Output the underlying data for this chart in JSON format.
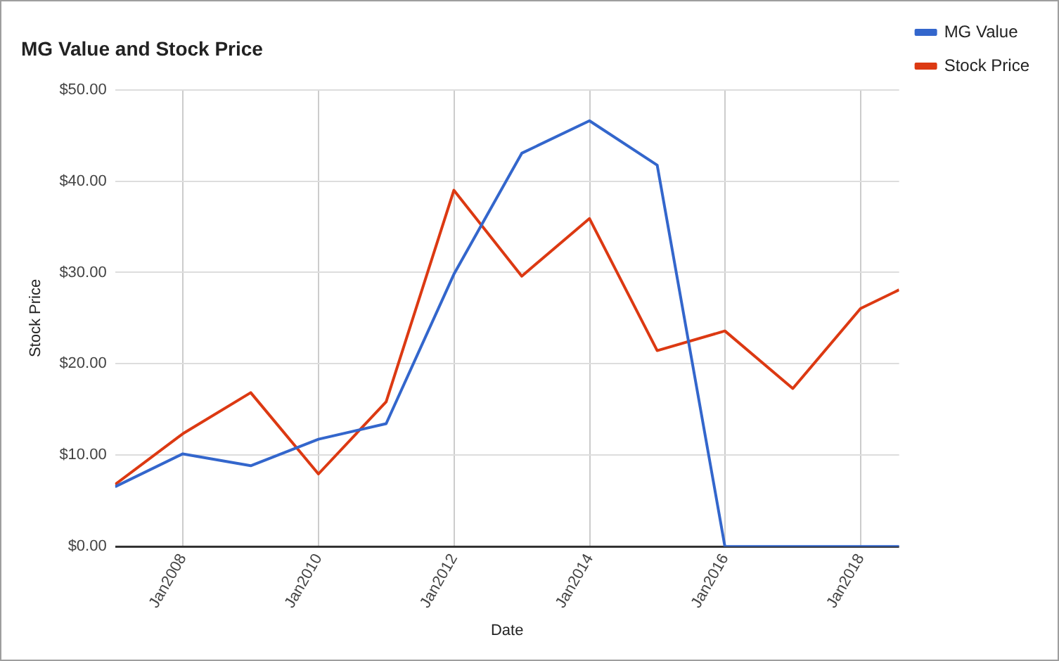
{
  "chart_data": {
    "type": "line",
    "title": "MG Value and Stock Price",
    "xlabel": "Date",
    "ylabel": "Stock Price",
    "x": [
      "2006-12-31",
      "2007-12-31",
      "2008-12-31",
      "2009-12-31",
      "2010-12-31",
      "2011-12-31",
      "2012-12-31",
      "2013-12-31",
      "2014-12-31",
      "2015-12-31",
      "2016-12-31",
      "2017-12-31",
      "2018-07-27"
    ],
    "series": [
      {
        "name": "MG Value",
        "color": "#3366cc",
        "values": [
          6.55,
          10.15,
          8.85,
          11.75,
          13.45,
          29.8,
          43.05,
          46.6,
          41.75,
          0,
          0,
          0,
          0
        ]
      },
      {
        "name": "Stock Price",
        "color": "#dc3912",
        "values": [
          6.8,
          12.35,
          16.85,
          7.95,
          15.85,
          39.0,
          29.6,
          35.9,
          21.45,
          23.6,
          17.3,
          26.05,
          28.1
        ]
      }
    ],
    "xlim": [
      "2006-12-31",
      "2018-07-27"
    ],
    "xticks": [
      {
        "value": "2008-01-01",
        "label": "Jan2008"
      },
      {
        "value": "2010-01-01",
        "label": "Jan2010"
      },
      {
        "value": "2012-01-01",
        "label": "Jan2012"
      },
      {
        "value": "2014-01-01",
        "label": "Jan2014"
      },
      {
        "value": "2016-01-01",
        "label": "Jan2016"
      },
      {
        "value": "2018-01-01",
        "label": "Jan2018"
      }
    ],
    "ylim": [
      0,
      50
    ],
    "yticks": [
      {
        "value": 0,
        "label": "$0.00"
      },
      {
        "value": 10,
        "label": "$10.00"
      },
      {
        "value": 20,
        "label": "$20.00"
      },
      {
        "value": 30,
        "label": "$30.00"
      },
      {
        "value": 40,
        "label": "$40.00"
      },
      {
        "value": 50,
        "label": "$50.00"
      }
    ],
    "grid": true,
    "legend": "top right",
    "marker": "none",
    "line_style": "solid"
  }
}
